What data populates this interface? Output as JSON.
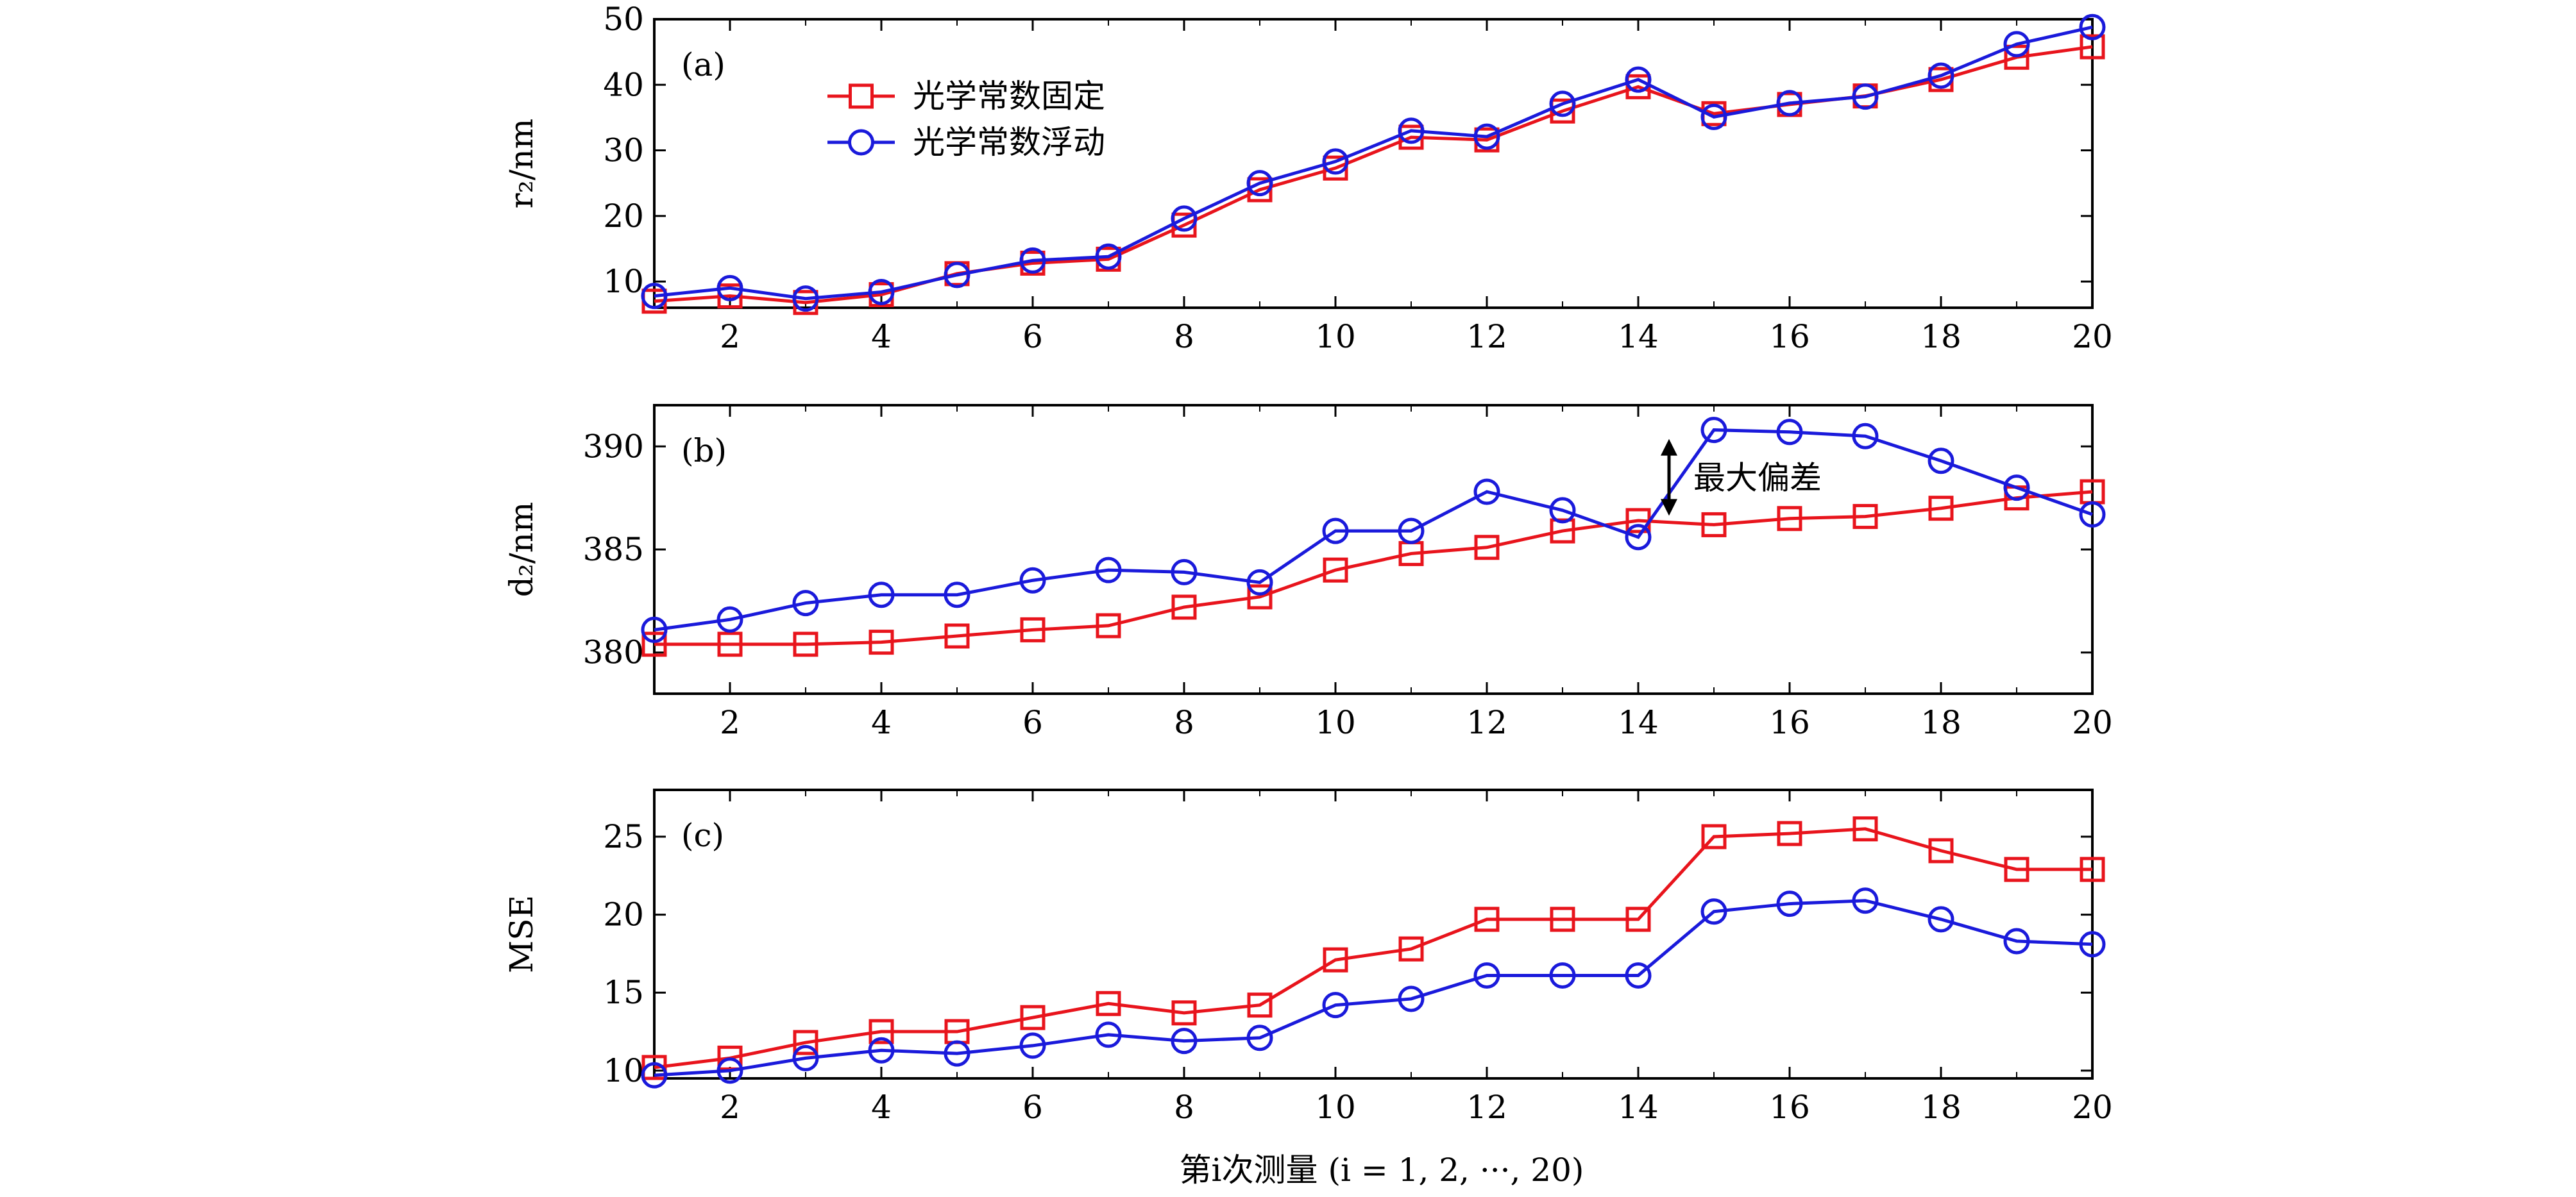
{
  "chart_data": [
    {
      "type": "line",
      "panel_label": "(a)",
      "ylabel": "r₂/nm",
      "xlabel": "",
      "xlim": [
        1,
        20
      ],
      "ylim": [
        6,
        50
      ],
      "x": [
        1,
        2,
        3,
        4,
        5,
        6,
        7,
        8,
        9,
        10,
        11,
        12,
        13,
        14,
        15,
        16,
        17,
        18,
        19,
        20
      ],
      "xticks": [
        "2",
        "4",
        "6",
        "8",
        "10",
        "12",
        "14",
        "16",
        "18",
        "20"
      ],
      "xtick_values": [
        2,
        4,
        6,
        8,
        10,
        12,
        14,
        16,
        18,
        20
      ],
      "yticks": [
        "10",
        "20",
        "30",
        "40",
        "50"
      ],
      "ytick_values": [
        10,
        20,
        30,
        40,
        50
      ],
      "legend": {
        "placement": "upper-left"
      },
      "series": [
        {
          "name": "光学常数固定",
          "marker": "square",
          "color": "#e8141c",
          "values": [
            7,
            7.8,
            6.8,
            8,
            11.2,
            12.8,
            13.4,
            18.6,
            24,
            27.3,
            32,
            31.6,
            36,
            39.7,
            35.6,
            37,
            38.3,
            40.8,
            44.2,
            45.8
          ]
        },
        {
          "name": "光学常数浮动",
          "marker": "circle",
          "color": "#1a1adb",
          "values": [
            7.8,
            9,
            7.4,
            8.4,
            11,
            13.2,
            13.8,
            19.6,
            25,
            28.3,
            33,
            32.1,
            37.1,
            40.8,
            35.1,
            37.2,
            38.2,
            41.4,
            46.2,
            48.8
          ]
        }
      ]
    },
    {
      "type": "line",
      "panel_label": "(b)",
      "ylabel": "d₂/nm",
      "xlabel": "",
      "xlim": [
        1,
        20
      ],
      "ylim": [
        378,
        392
      ],
      "x": [
        1,
        2,
        3,
        4,
        5,
        6,
        7,
        8,
        9,
        10,
        11,
        12,
        13,
        14,
        15,
        16,
        17,
        18,
        19,
        20
      ],
      "xticks": [
        "2",
        "4",
        "6",
        "8",
        "10",
        "12",
        "14",
        "16",
        "18",
        "20"
      ],
      "xtick_values": [
        2,
        4,
        6,
        8,
        10,
        12,
        14,
        16,
        18,
        20
      ],
      "yticks": [
        "380",
        "385",
        "390"
      ],
      "ytick_values": [
        380,
        385,
        390
      ],
      "annotation": {
        "text": "最大偏差",
        "x": 15,
        "from": 386.2,
        "to": 390.8
      },
      "series": [
        {
          "name": "光学常数固定",
          "marker": "square",
          "color": "#e8141c",
          "values": [
            380.4,
            380.4,
            380.4,
            380.5,
            380.8,
            381.1,
            381.3,
            382.2,
            382.7,
            384,
            384.8,
            385.1,
            385.9,
            386.4,
            386.2,
            386.5,
            386.6,
            387,
            387.5,
            387.8
          ]
        },
        {
          "name": "光学常数浮动",
          "marker": "circle",
          "color": "#1a1adb",
          "values": [
            381.1,
            381.6,
            382.4,
            382.8,
            382.8,
            383.5,
            384,
            383.9,
            383.4,
            385.9,
            385.9,
            387.8,
            386.9,
            385.6,
            390.8,
            390.7,
            390.5,
            389.3,
            388,
            386.7
          ]
        }
      ]
    },
    {
      "type": "line",
      "panel_label": "(c)",
      "ylabel": "MSE",
      "xlabel": "第i次测量 (i = 1, 2, ···, 20)",
      "xlim": [
        1,
        20
      ],
      "ylim": [
        9.5,
        28
      ],
      "x": [
        1,
        2,
        3,
        4,
        5,
        6,
        7,
        8,
        9,
        10,
        11,
        12,
        13,
        14,
        15,
        16,
        17,
        18,
        19,
        20
      ],
      "xticks": [
        "2",
        "4",
        "6",
        "8",
        "10",
        "12",
        "14",
        "16",
        "18",
        "20"
      ],
      "xtick_values": [
        2,
        4,
        6,
        8,
        10,
        12,
        14,
        16,
        18,
        20
      ],
      "yticks": [
        "10",
        "15",
        "20",
        "25"
      ],
      "ytick_values": [
        10,
        15,
        20,
        25
      ],
      "series": [
        {
          "name": "光学常数固定",
          "marker": "square",
          "color": "#e8141c",
          "values": [
            10.2,
            10.8,
            11.8,
            12.5,
            12.5,
            13.4,
            14.3,
            13.7,
            14.2,
            17.1,
            17.8,
            19.7,
            19.7,
            19.7,
            25,
            25.2,
            25.5,
            24.1,
            22.9,
            22.9
          ]
        },
        {
          "name": "光学常数浮动",
          "marker": "circle",
          "color": "#1a1adb",
          "values": [
            9.7,
            10,
            10.8,
            11.3,
            11.1,
            11.6,
            12.3,
            11.9,
            12.1,
            14.2,
            14.6,
            16.1,
            16.1,
            16.1,
            20.2,
            20.7,
            20.9,
            19.7,
            18.3,
            18.1
          ]
        }
      ]
    }
  ]
}
